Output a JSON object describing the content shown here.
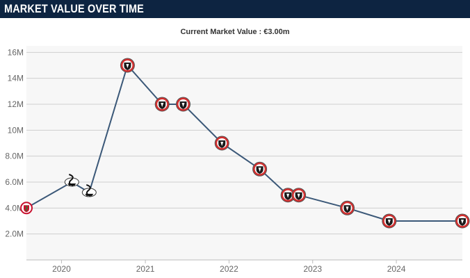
{
  "header": {
    "title": "MARKET VALUE OVER TIME"
  },
  "subtitle": "Current Market Value : €3.00m",
  "colors": {
    "header_bg": "#0d2441",
    "line": "#3b5878",
    "plot_bg": "#f7f7f7",
    "grid": "#cfcfcf",
    "crest_red": "#d32f2f"
  },
  "chart_data": {
    "type": "line",
    "title": "",
    "xlabel": "",
    "ylabel": "",
    "x_ticks": [
      "2020",
      "2021",
      "2022",
      "2023",
      "2024"
    ],
    "y_ticks": [
      "2.0M",
      "4.0M",
      "6.0M",
      "8.0M",
      "10M",
      "12M",
      "14M",
      "16M"
    ],
    "xlim": [
      "2019-08-01",
      "2024-10-15"
    ],
    "ylim": [
      0,
      16.5
    ],
    "grid": true,
    "series": [
      {
        "name": "",
        "points": [
          {
            "date": "2019-08-01",
            "value": 4.0,
            "club_icon": "liverpool-crest-icon"
          },
          {
            "date": "2020-02-15",
            "value": 6.0,
            "club_icon": "swansea-crest-icon"
          },
          {
            "date": "2020-05-01",
            "value": 5.2,
            "club_icon": "swansea-crest-icon"
          },
          {
            "date": "2020-10-15",
            "value": 15.0,
            "club_icon": "sheffield-united-crest-icon"
          },
          {
            "date": "2021-03-15",
            "value": 12.0,
            "club_icon": "sheffield-united-crest-icon"
          },
          {
            "date": "2021-06-15",
            "value": 12.0,
            "club_icon": "sheffield-united-crest-icon"
          },
          {
            "date": "2021-12-01",
            "value": 9.0,
            "club_icon": "sheffield-united-crest-icon"
          },
          {
            "date": "2022-05-15",
            "value": 7.0,
            "club_icon": "sheffield-united-crest-icon"
          },
          {
            "date": "2022-09-15",
            "value": 5.0,
            "club_icon": "sheffield-united-crest-icon"
          },
          {
            "date": "2022-11-01",
            "value": 5.0,
            "club_icon": "sheffield-united-crest-icon"
          },
          {
            "date": "2023-06-01",
            "value": 4.0,
            "club_icon": "sheffield-united-crest-icon"
          },
          {
            "date": "2023-12-01",
            "value": 3.0,
            "club_icon": "sheffield-united-crest-icon"
          },
          {
            "date": "2024-10-15",
            "value": 3.0,
            "club_icon": "sheffield-united-crest-icon"
          }
        ]
      }
    ]
  }
}
